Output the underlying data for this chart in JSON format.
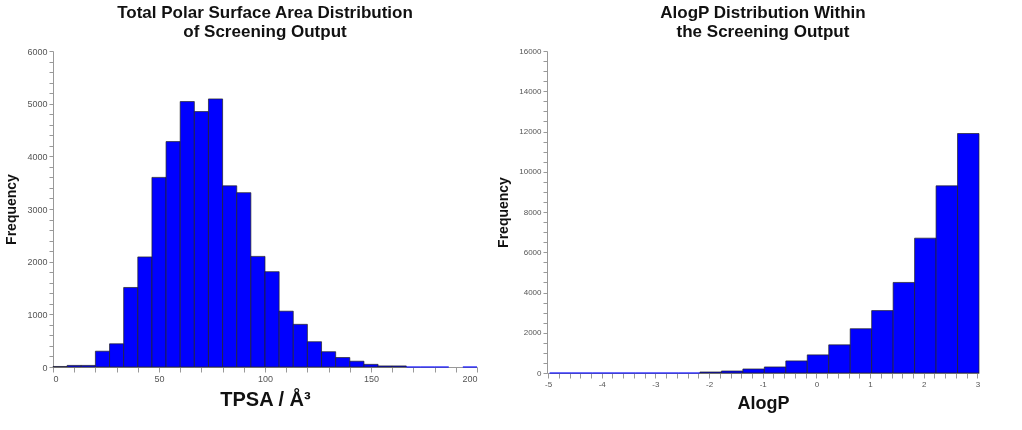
{
  "chart_data": [
    {
      "type": "histogram",
      "title": "Total Polar Surface Area Distribution\nof Screening Output",
      "xlabel": "TPSA / Å³",
      "ylabel": "Frequency",
      "color": "#0000ff",
      "bins": [
        0,
        6.67,
        13.33,
        20,
        26.67,
        33.33,
        40,
        46.67,
        53.33,
        60,
        66.67,
        73.33,
        80,
        86.67,
        93.33,
        100,
        106.67,
        113.33,
        120,
        126.67,
        133.33,
        140,
        146.67,
        153.33,
        160,
        166.67,
        173.33,
        180,
        186.67,
        193.33,
        200
      ],
      "values": [
        10,
        30,
        30,
        300,
        440,
        1510,
        2090,
        3600,
        4280,
        5040,
        4850,
        5090,
        3440,
        3310,
        2100,
        1810,
        1060,
        810,
        480,
        290,
        180,
        110,
        50,
        20,
        20,
        0,
        0,
        0,
        null,
        0
      ],
      "xlim": [
        0,
        200
      ],
      "ylim": [
        0,
        6000
      ],
      "xticks": [
        0,
        {
          "value": 10,
          "label": null
        },
        {
          "value": 20,
          "label": null
        },
        {
          "value": 30,
          "label": null
        },
        {
          "value": 40,
          "label": null
        },
        50,
        {
          "value": 60,
          "label": null
        },
        {
          "value": 70,
          "label": null
        },
        {
          "value": 80,
          "label": null
        },
        {
          "value": 90,
          "label": null
        },
        100,
        {
          "value": 110,
          "label": null
        },
        {
          "value": 120,
          "label": null
        },
        {
          "value": 130,
          "label": null
        },
        {
          "value": 140,
          "label": null
        },
        150,
        {
          "value": 160,
          "label": null
        },
        {
          "value": 170,
          "label": null
        },
        {
          "value": 180,
          "label": null
        },
        {
          "value": 190,
          "label": null
        },
        200
      ],
      "yticks": [
        0,
        {
          "value": 200,
          "label": null
        },
        {
          "value": 400,
          "label": null
        },
        {
          "value": 600,
          "label": null
        },
        {
          "value": 800,
          "label": null
        },
        1000,
        {
          "value": 1200,
          "label": null
        },
        {
          "value": 1400,
          "label": null
        },
        {
          "value": 1600,
          "label": null
        },
        {
          "value": 1800,
          "label": null
        },
        2000,
        {
          "value": 2200,
          "label": null
        },
        {
          "value": 2400,
          "label": null
        },
        {
          "value": 2600,
          "label": null
        },
        {
          "value": 2800,
          "label": null
        },
        3000,
        {
          "value": 3200,
          "label": null
        },
        {
          "value": 3400,
          "label": null
        },
        {
          "value": 3600,
          "label": null
        },
        {
          "value": 3800,
          "label": null
        },
        4000,
        {
          "value": 4200,
          "label": null
        },
        {
          "value": 4400,
          "label": null
        },
        {
          "value": 4600,
          "label": null
        },
        {
          "value": 4800,
          "label": null
        },
        5000,
        {
          "value": 5200,
          "label": null
        },
        {
          "value": 5400,
          "label": null
        },
        {
          "value": 5600,
          "label": null
        },
        {
          "value": 5800,
          "label": null
        },
        6000
      ],
      "grid": false
    },
    {
      "type": "histogram",
      "title": "AlogP Distribution Within\nthe Screening Output",
      "xlabel": "AlogP",
      "ylabel": "Frequency",
      "color": "#0000ff",
      "bins": [
        -4.97,
        -4.57,
        -4.17,
        -3.77,
        -3.37,
        -2.97,
        -2.57,
        -2.17,
        -1.77,
        -1.37,
        -0.97,
        -0.57,
        -0.17,
        0.23,
        0.63,
        1.03,
        1.43,
        1.83,
        2.23,
        2.63,
        3.03
      ],
      "values": [
        0,
        0,
        0,
        0,
        0,
        0,
        0,
        50,
        100,
        200,
        300,
        600,
        900,
        1400,
        2200,
        3100,
        4500,
        6700,
        9300,
        11900
      ],
      "xlim": [
        -5.02,
        3.03
      ],
      "ylim": [
        0,
        16000
      ],
      "xticks": [
        -5,
        {
          "value": -4.8,
          "label": null
        },
        {
          "value": -4.6,
          "label": null
        },
        {
          "value": -4.4,
          "label": null
        },
        {
          "value": -4.2,
          "label": null
        },
        -4,
        {
          "value": -3.8,
          "label": null
        },
        {
          "value": -3.6,
          "label": null
        },
        {
          "value": -3.4,
          "label": null
        },
        {
          "value": -3.2,
          "label": null
        },
        -3,
        {
          "value": -2.8,
          "label": null
        },
        {
          "value": -2.6,
          "label": null
        },
        {
          "value": -2.4,
          "label": null
        },
        {
          "value": -2.2,
          "label": null
        },
        -2,
        {
          "value": -1.8,
          "label": null
        },
        {
          "value": -1.6,
          "label": null
        },
        {
          "value": -1.4,
          "label": null
        },
        {
          "value": -1.2,
          "label": null
        },
        -1,
        {
          "value": -0.8,
          "label": null
        },
        {
          "value": -0.6,
          "label": null
        },
        {
          "value": -0.4,
          "label": null
        },
        {
          "value": -0.2,
          "label": null
        },
        0,
        {
          "value": 0.2,
          "label": null
        },
        {
          "value": 0.4,
          "label": null
        },
        {
          "value": 0.6,
          "label": null
        },
        {
          "value": 0.8,
          "label": null
        },
        1,
        {
          "value": 1.2,
          "label": null
        },
        {
          "value": 1.4,
          "label": null
        },
        {
          "value": 1.6,
          "label": null
        },
        {
          "value": 1.8,
          "label": null
        },
        2,
        {
          "value": 2.2,
          "label": null
        },
        {
          "value": 2.4,
          "label": null
        },
        {
          "value": 2.6,
          "label": null
        },
        {
          "value": 2.8,
          "label": null
        },
        3
      ],
      "yticks": [
        0,
        {
          "value": 500,
          "label": null
        },
        {
          "value": 1000,
          "label": null
        },
        {
          "value": 1500,
          "label": null
        },
        2000,
        {
          "value": 2500,
          "label": null
        },
        {
          "value": 3000,
          "label": null
        },
        {
          "value": 3500,
          "label": null
        },
        4000,
        {
          "value": 4500,
          "label": null
        },
        {
          "value": 5000,
          "label": null
        },
        {
          "value": 5500,
          "label": null
        },
        6000,
        {
          "value": 6500,
          "label": null
        },
        {
          "value": 7000,
          "label": null
        },
        {
          "value": 7500,
          "label": null
        },
        8000,
        {
          "value": 8500,
          "label": null
        },
        {
          "value": 9000,
          "label": null
        },
        {
          "value": 9500,
          "label": null
        },
        10000,
        {
          "value": 10500,
          "label": null
        },
        {
          "value": 11000,
          "label": null
        },
        {
          "value": 11500,
          "label": null
        },
        12000,
        {
          "value": 12500,
          "label": null
        },
        {
          "value": 13000,
          "label": null
        },
        {
          "value": 13500,
          "label": null
        },
        14000,
        {
          "value": 14500,
          "label": null
        },
        {
          "value": 15000,
          "label": null
        },
        {
          "value": 15500,
          "label": null
        },
        16000
      ],
      "grid": false
    }
  ]
}
